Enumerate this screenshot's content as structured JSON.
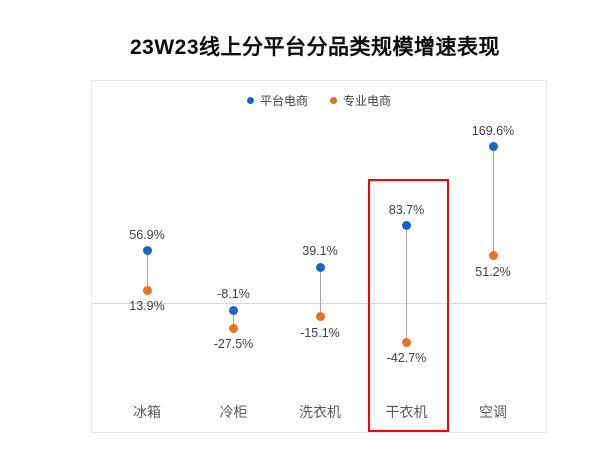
{
  "title": "23W23线上分平台分品类规模增速表现",
  "colors": {
    "series_blue": "#1a66c4",
    "series_orange": "#ed7022",
    "zero_gridline": "#d9d9d9",
    "panel_border": "#e9e9e9",
    "connector": "#a6a6a6",
    "highlight": "#fe0000",
    "value_label_text": "#3f3f3f",
    "category_label_text": "#595959"
  },
  "chart_data": {
    "type": "scatter",
    "subtype": "dumbbell-dot-plot",
    "title": "23W23线上分平台分品类规模增速表现",
    "categories": [
      "冰箱",
      "冷柜",
      "洗衣机",
      "干衣机",
      "空调"
    ],
    "series": [
      {
        "name": "平台电商",
        "color": "#1a66c4",
        "values": [
          56.9,
          -8.1,
          39.1,
          83.7,
          169.6
        ],
        "labels": [
          "56.9%",
          "-8.1%",
          "39.1%",
          "83.7%",
          "169.6%"
        ]
      },
      {
        "name": "专业电商",
        "color": "#ed7022",
        "values": [
          13.9,
          -27.5,
          -15.1,
          -42.7,
          51.2
        ],
        "labels": [
          "13.9%",
          "-27.5%",
          "-15.1%",
          "-42.7%",
          "51.2%"
        ]
      }
    ],
    "xlabel": "",
    "ylabel": "",
    "unit": "%",
    "grid": "single-zero-line",
    "legend_position": "top-center",
    "ylim": [
      -130,
      210
    ],
    "annotations": [
      {
        "type": "highlight-box",
        "category": "干衣机",
        "color": "#fe0000"
      }
    ]
  }
}
